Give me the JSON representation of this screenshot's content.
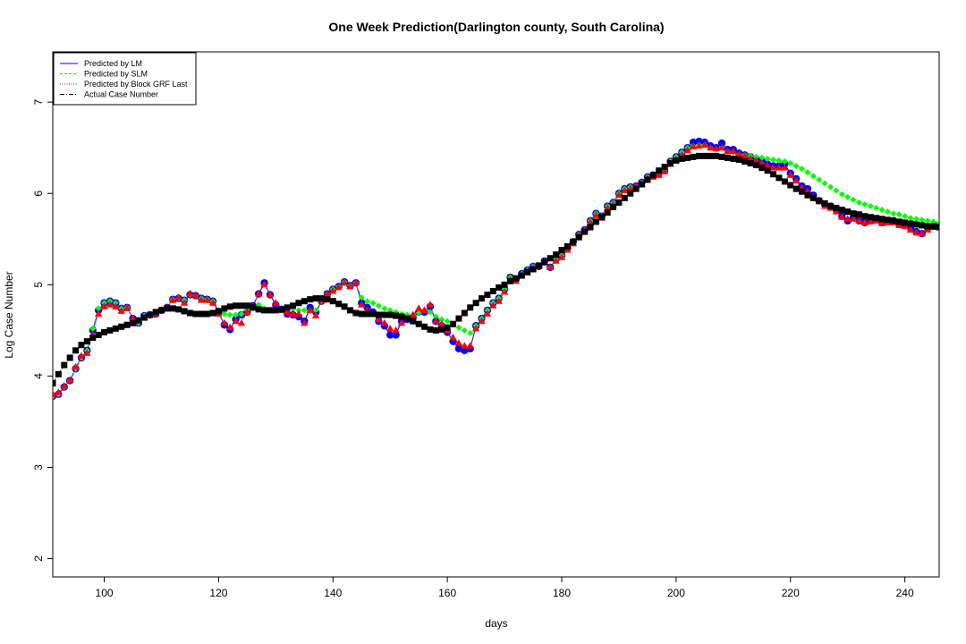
{
  "chart_data": {
    "type": "scatter",
    "title": "One Week Prediction(Darlington county, South Carolina)",
    "xlabel": "days",
    "ylabel": "Log Case Number",
    "xlim": [
      91,
      246
    ],
    "ylim": [
      1.8,
      7.55
    ],
    "xticks": [
      100,
      120,
      140,
      160,
      180,
      200,
      220,
      240
    ],
    "yticks": [
      2,
      3,
      4,
      5,
      6,
      7
    ],
    "legend_position": "top-left",
    "legend": [
      {
        "label": "Predicted by LM",
        "color": "#0000ff",
        "line": "solid"
      },
      {
        "label": "Predicted by SLM",
        "color": "#00ff00",
        "line": "dashed"
      },
      {
        "label": "Predicted by Block GRF Last",
        "color": "#ff0000",
        "line": "dotted"
      },
      {
        "label": "Actual Case Number",
        "color": "#000000",
        "line": "dashdot"
      }
    ],
    "x": [
      91,
      92,
      93,
      94,
      95,
      96,
      97,
      98,
      99,
      100,
      101,
      102,
      103,
      104,
      105,
      106,
      107,
      108,
      109,
      110,
      111,
      112,
      113,
      114,
      115,
      116,
      117,
      118,
      119,
      120,
      121,
      122,
      123,
      124,
      125,
      126,
      127,
      128,
      129,
      130,
      131,
      132,
      133,
      134,
      135,
      136,
      137,
      138,
      139,
      140,
      141,
      142,
      143,
      144,
      145,
      146,
      147,
      148,
      149,
      150,
      151,
      152,
      153,
      154,
      155,
      156,
      157,
      158,
      159,
      160,
      161,
      162,
      163,
      164,
      165,
      166,
      167,
      168,
      169,
      170,
      171,
      172,
      173,
      174,
      175,
      176,
      177,
      178,
      179,
      180,
      181,
      182,
      183,
      184,
      185,
      186,
      187,
      188,
      189,
      190,
      191,
      192,
      193,
      194,
      195,
      196,
      197,
      198,
      199,
      200,
      201,
      202,
      203,
      204,
      205,
      206,
      207,
      208,
      209,
      210,
      211,
      212,
      213,
      214,
      215,
      216,
      217,
      218,
      219,
      220,
      221,
      222,
      223,
      224,
      225,
      226,
      227,
      228,
      229,
      230,
      231,
      232,
      233,
      234,
      235,
      236,
      237,
      238,
      239,
      240,
      241,
      242,
      243,
      244,
      245,
      246
    ],
    "series": [
      {
        "name": "Actual Case Number",
        "color": "#000000",
        "marker": "square",
        "values": [
          3.92,
          4.02,
          4.12,
          4.2,
          4.28,
          4.34,
          4.38,
          4.42,
          4.45,
          4.48,
          4.5,
          4.52,
          4.54,
          4.56,
          4.58,
          4.61,
          4.64,
          4.67,
          4.7,
          4.72,
          4.74,
          4.74,
          4.73,
          4.71,
          4.69,
          4.68,
          4.68,
          4.68,
          4.69,
          4.71,
          4.74,
          4.76,
          4.77,
          4.77,
          4.77,
          4.75,
          4.73,
          4.72,
          4.72,
          4.72,
          4.73,
          4.75,
          4.77,
          4.8,
          4.82,
          4.84,
          4.85,
          4.85,
          4.84,
          4.82,
          4.79,
          4.76,
          4.72,
          4.69,
          4.68,
          4.68,
          4.68,
          4.67,
          4.67,
          4.67,
          4.66,
          4.65,
          4.63,
          4.6,
          4.57,
          4.54,
          4.51,
          4.5,
          4.51,
          4.53,
          4.57,
          4.63,
          4.69,
          4.75,
          4.8,
          4.85,
          4.89,
          4.93,
          4.97,
          5.0,
          5.04,
          5.07,
          5.1,
          5.14,
          5.17,
          5.21,
          5.25,
          5.29,
          5.33,
          5.38,
          5.42,
          5.47,
          5.52,
          5.58,
          5.63,
          5.69,
          5.74,
          5.79,
          5.85,
          5.9,
          5.95,
          6.0,
          6.05,
          6.1,
          6.15,
          6.2,
          6.25,
          6.29,
          6.33,
          6.36,
          6.38,
          6.39,
          6.4,
          6.41,
          6.41,
          6.41,
          6.41,
          6.4,
          6.39,
          6.38,
          6.37,
          6.35,
          6.33,
          6.31,
          6.28,
          6.25,
          6.21,
          6.17,
          6.13,
          6.09,
          6.05,
          6.02,
          5.98,
          5.95,
          5.92,
          5.89,
          5.86,
          5.84,
          5.82,
          5.8,
          5.78,
          5.77,
          5.75,
          5.74,
          5.73,
          5.72,
          5.71,
          5.7,
          5.69,
          5.68,
          5.67,
          5.66,
          5.65,
          5.64,
          5.64,
          5.63
        ]
      },
      {
        "name": "Predicted by LM",
        "color": "#0000ff",
        "marker": "circle",
        "values": [
          3.78,
          3.8,
          3.88,
          3.95,
          4.08,
          4.2,
          4.28,
          4.5,
          4.72,
          4.8,
          4.82,
          4.8,
          4.74,
          4.75,
          4.63,
          4.58,
          4.66,
          4.67,
          4.68,
          4.72,
          4.75,
          4.84,
          4.85,
          4.83,
          4.89,
          4.88,
          4.85,
          4.84,
          4.82,
          4.7,
          4.56,
          4.51,
          4.62,
          4.67,
          4.7,
          4.77,
          4.9,
          5.02,
          4.89,
          4.78,
          4.73,
          4.68,
          4.67,
          4.65,
          4.6,
          4.75,
          4.7,
          4.82,
          4.9,
          4.95,
          4.98,
          5.03,
          4.99,
          5.02,
          4.8,
          4.75,
          4.7,
          4.6,
          4.55,
          4.45,
          4.45,
          4.6,
          4.62,
          4.64,
          4.7,
          4.7,
          4.76,
          4.6,
          4.55,
          4.48,
          4.38,
          4.3,
          4.28,
          4.3,
          4.55,
          4.63,
          4.72,
          4.8,
          4.85,
          4.95,
          5.08,
          5.06,
          5.12,
          5.16,
          5.2,
          5.2,
          5.26,
          5.19,
          5.28,
          5.32,
          5.4,
          5.47,
          5.55,
          5.6,
          5.7,
          5.78,
          5.75,
          5.86,
          5.9,
          6.0,
          6.05,
          6.07,
          6.08,
          6.12,
          6.18,
          6.2,
          6.22,
          6.25,
          6.35,
          6.4,
          6.45,
          6.5,
          6.56,
          6.57,
          6.56,
          6.52,
          6.5,
          6.55,
          6.48,
          6.48,
          6.44,
          6.42,
          6.4,
          6.38,
          6.35,
          6.32,
          6.3,
          6.3,
          6.32,
          6.22,
          6.16,
          6.08,
          6.05,
          5.98,
          5.92,
          5.88,
          5.86,
          5.82,
          5.75,
          5.7,
          5.74,
          5.7,
          5.68,
          5.7,
          5.72,
          5.68,
          5.7,
          5.7,
          5.66,
          5.66,
          5.62,
          5.58,
          5.56,
          5.62,
          5.64,
          5.65
        ]
      },
      {
        "name": "Predicted by SLM",
        "color": "#00ff00",
        "marker": "diamond",
        "values": [
          3.78,
          3.8,
          3.88,
          3.95,
          4.08,
          4.2,
          4.28,
          4.52,
          4.74,
          4.8,
          4.82,
          4.8,
          4.74,
          4.75,
          4.62,
          4.58,
          4.66,
          4.67,
          4.68,
          4.72,
          4.75,
          4.84,
          4.85,
          4.83,
          4.89,
          4.88,
          4.85,
          4.84,
          4.82,
          4.72,
          4.68,
          4.67,
          4.67,
          4.68,
          4.72,
          4.74,
          4.78,
          4.74,
          4.72,
          4.72,
          4.74,
          4.75,
          4.74,
          4.72,
          4.72,
          4.71,
          4.72,
          4.82,
          4.9,
          4.95,
          4.98,
          5.03,
          4.99,
          5.02,
          4.86,
          4.82,
          4.8,
          4.77,
          4.74,
          4.72,
          4.7,
          4.68,
          4.67,
          4.67,
          4.69,
          4.72,
          4.7,
          4.65,
          4.62,
          4.6,
          4.56,
          4.53,
          4.5,
          4.47,
          4.55,
          4.63,
          4.72,
          4.8,
          4.85,
          4.95,
          5.08,
          5.06,
          5.12,
          5.16,
          5.2,
          5.2,
          5.26,
          5.19,
          5.28,
          5.32,
          5.4,
          5.47,
          5.55,
          5.6,
          5.7,
          5.78,
          5.75,
          5.86,
          5.9,
          6.0,
          6.05,
          6.07,
          6.08,
          6.12,
          6.18,
          6.2,
          6.22,
          6.25,
          6.35,
          6.4,
          6.45,
          6.5,
          6.52,
          6.53,
          6.53,
          6.5,
          6.48,
          6.5,
          6.46,
          6.45,
          6.43,
          6.42,
          6.41,
          6.4,
          6.39,
          6.38,
          6.37,
          6.36,
          6.35,
          6.33,
          6.3,
          6.27,
          6.23,
          6.19,
          6.15,
          6.11,
          6.07,
          6.03,
          5.99,
          5.96,
          5.93,
          5.9,
          5.88,
          5.86,
          5.84,
          5.82,
          5.8,
          5.78,
          5.77,
          5.75,
          5.73,
          5.72,
          5.71,
          5.7,
          5.69,
          5.68
        ]
      },
      {
        "name": "Predicted by Block GRF Last",
        "color": "#ff0000",
        "marker": "triangle",
        "values": [
          3.8,
          3.82,
          3.89,
          3.95,
          4.1,
          4.22,
          4.25,
          4.45,
          4.68,
          4.76,
          4.78,
          4.76,
          4.71,
          4.74,
          4.63,
          4.6,
          4.64,
          4.67,
          4.68,
          4.72,
          4.75,
          4.83,
          4.86,
          4.8,
          4.9,
          4.88,
          4.83,
          4.83,
          4.8,
          4.68,
          4.58,
          4.53,
          4.6,
          4.58,
          4.7,
          4.76,
          4.9,
          5.0,
          4.89,
          4.8,
          4.72,
          4.7,
          4.68,
          4.68,
          4.58,
          4.72,
          4.66,
          4.83,
          4.9,
          4.93,
          4.97,
          5.02,
          4.98,
          5.02,
          4.78,
          4.72,
          4.68,
          4.62,
          4.58,
          4.52,
          4.5,
          4.58,
          4.62,
          4.67,
          4.74,
          4.72,
          4.78,
          4.6,
          4.57,
          4.5,
          4.42,
          4.36,
          4.33,
          4.33,
          4.52,
          4.6,
          4.68,
          4.77,
          4.82,
          4.92,
          5.05,
          5.04,
          5.1,
          5.13,
          5.18,
          5.2,
          5.24,
          5.19,
          5.26,
          5.3,
          5.38,
          5.45,
          5.54,
          5.6,
          5.68,
          5.76,
          5.73,
          5.84,
          5.88,
          5.98,
          6.03,
          6.05,
          6.08,
          6.1,
          6.16,
          6.18,
          6.2,
          6.24,
          6.32,
          6.37,
          6.42,
          6.47,
          6.51,
          6.52,
          6.53,
          6.5,
          6.49,
          6.5,
          6.46,
          6.46,
          6.43,
          6.41,
          6.38,
          6.36,
          6.33,
          6.3,
          6.28,
          6.28,
          6.28,
          6.2,
          6.14,
          6.06,
          6.02,
          5.96,
          5.91,
          5.86,
          5.84,
          5.8,
          5.74,
          5.72,
          5.72,
          5.7,
          5.68,
          5.69,
          5.7,
          5.67,
          5.68,
          5.68,
          5.65,
          5.64,
          5.6,
          5.57,
          5.56,
          5.6,
          5.63,
          5.64
        ]
      }
    ]
  }
}
